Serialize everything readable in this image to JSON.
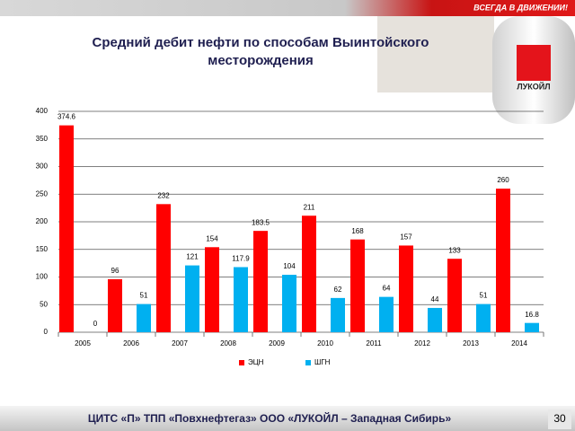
{
  "header": {
    "slogan": "ВСЕГДА В ДВИЖЕНИИ!",
    "logo": "ЛУКОЙЛ"
  },
  "chart_data": {
    "type": "bar",
    "title": "Средний дебит нефти по способам Выинтойского месторождения",
    "categories": [
      "2005",
      "2006",
      "2007",
      "2008",
      "2009",
      "2010",
      "2011",
      "2012",
      "2013",
      "2014"
    ],
    "series": [
      {
        "name": "ЭЦН",
        "color": "#ff0000",
        "values": [
          374.6,
          96,
          232,
          154,
          183.5,
          211,
          168,
          157,
          133,
          260
        ]
      },
      {
        "name": "ШГН",
        "color": "#00b0f0",
        "values": [
          0,
          51,
          121,
          117.9,
          104,
          62,
          64,
          44,
          51,
          16.8
        ]
      }
    ],
    "ylim": [
      0,
      400
    ],
    "yticks": [
      0,
      50,
      100,
      150,
      200,
      250,
      300,
      350,
      400
    ],
    "grid": true,
    "legend": "bottom"
  },
  "footer": {
    "text": "ЦИТС «П» ТПП «Повхнефтегаз» ООО «ЛУКОЙЛ – Западная Сибирь»",
    "page": "30"
  }
}
